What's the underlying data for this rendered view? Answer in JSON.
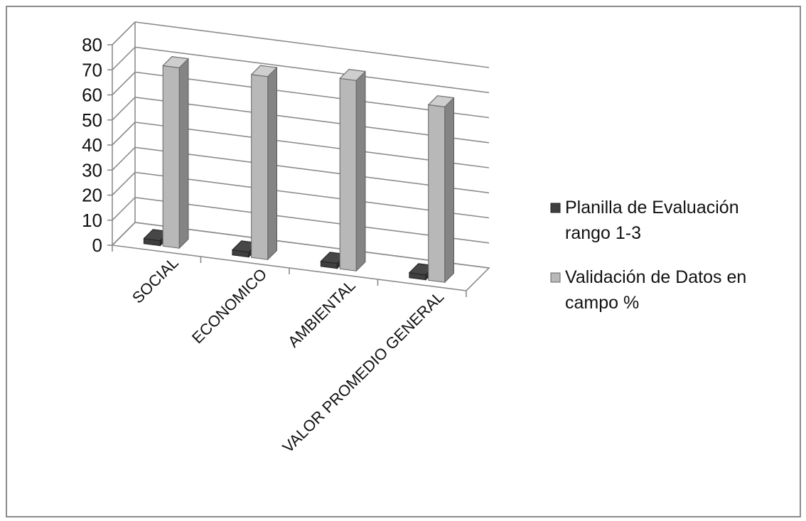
{
  "chart_data": {
    "type": "bar",
    "style": "3d-clustered-column",
    "title": "",
    "xlabel": "",
    "ylabel": "",
    "categories": [
      "SOCIAL",
      "ECONOMICO",
      "AMBIENTAL",
      "VALOR PROMEDIO GENERAL"
    ],
    "series": [
      {
        "name": "Planilla de Evaluación rango 1-3",
        "values": [
          2,
          2,
          2,
          2
        ],
        "color": "#3f3f3f"
      },
      {
        "name": "Validación de Datos en campo %",
        "values": [
          72,
          73,
          76,
          70
        ],
        "color": "#b8b8b8"
      }
    ],
    "ylim": [
      0,
      80
    ],
    "yticks": [
      "0",
      "10",
      "20",
      "30",
      "40",
      "50",
      "60",
      "70",
      "80"
    ],
    "grid": true,
    "legend": {
      "position": "right",
      "entries": [
        {
          "lines": [
            "Planilla de Evaluación",
            "rango 1-3"
          ],
          "color": "#3f3f3f"
        },
        {
          "lines": [
            "Validación de Datos en",
            "campo %"
          ],
          "color": "#b8b8b8"
        }
      ]
    }
  }
}
